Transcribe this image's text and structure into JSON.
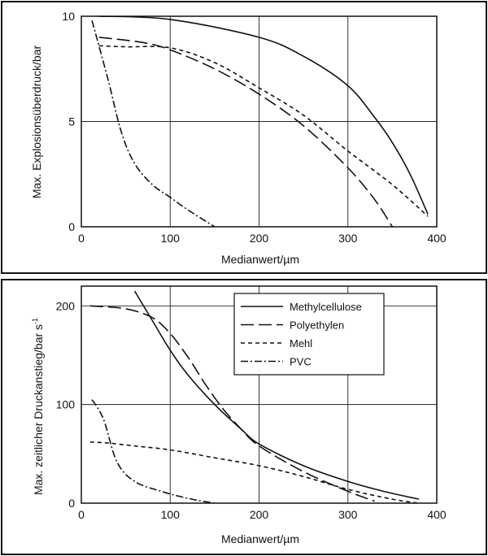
{
  "chart_data": [
    {
      "type": "line",
      "xlabel": "Medianwert/µm",
      "ylabel": "Max. Explosionsüberdruck/bar",
      "xlim": [
        0,
        400
      ],
      "ylim": [
        0,
        10
      ],
      "xticks": [
        0,
        100,
        200,
        300,
        400
      ],
      "yticks": [
        0,
        5,
        10
      ],
      "grid": true,
      "series": [
        {
          "key": "methylcellulose",
          "dash": "solid",
          "x": [
            20,
            100,
            200,
            250,
            300,
            330,
            350,
            370,
            390
          ],
          "y": [
            10,
            9.85,
            9.0,
            8.1,
            6.7,
            5.2,
            4.0,
            2.5,
            0.6
          ]
        },
        {
          "key": "polyethylen",
          "dash": "long-dash",
          "x": [
            20,
            70,
            100,
            150,
            200,
            250,
            300,
            330,
            350
          ],
          "y": [
            9.0,
            8.75,
            8.4,
            7.5,
            6.3,
            4.8,
            2.8,
            1.3,
            0
          ]
        },
        {
          "key": "mehl",
          "dash": "short-dash",
          "x": [
            20,
            50,
            100,
            150,
            200,
            250,
            300,
            350,
            390
          ],
          "y": [
            8.6,
            8.55,
            8.5,
            7.8,
            6.6,
            5.3,
            3.6,
            2.0,
            0.5
          ]
        },
        {
          "key": "pvc",
          "dash": "dash-dot",
          "x": [
            12,
            30,
            45,
            60,
            80,
            100,
            120,
            150
          ],
          "y": [
            9.8,
            7.0,
            4.5,
            3.0,
            2.0,
            1.4,
            0.8,
            0
          ]
        }
      ]
    },
    {
      "type": "line",
      "xlabel": "Medianwert/µm",
      "ylabel": "Max. zeitlicher Druckanstieg/bar s",
      "ylabel_sup": "-1",
      "xlim": [
        0,
        400
      ],
      "ylim": [
        0,
        220
      ],
      "xticks": [
        0,
        100,
        200,
        300,
        400
      ],
      "yticks": [
        0,
        100,
        200
      ],
      "grid": true,
      "legend": {
        "placement": "top-right",
        "entries": [
          {
            "label": "Methylcellulose",
            "dash": "solid"
          },
          {
            "label": "Polyethylen",
            "dash": "long-dash"
          },
          {
            "label": "Mehl",
            "dash": "short-dash"
          },
          {
            "label": "PVC",
            "dash": "dash-dot"
          }
        ]
      },
      "series": [
        {
          "key": "methylcellulose",
          "dash": "solid",
          "x": [
            60,
            80,
            100,
            120,
            150,
            180,
            200,
            250,
            300,
            340,
            380
          ],
          "y": [
            215,
            185,
            155,
            130,
            100,
            75,
            60,
            38,
            22,
            12,
            4
          ]
        },
        {
          "key": "polyethylen",
          "dash": "long-dash",
          "x": [
            10,
            50,
            80,
            100,
            120,
            140,
            160,
            180,
            200,
            250,
            300,
            330
          ],
          "y": [
            200,
            197,
            188,
            172,
            148,
            120,
            95,
            75,
            58,
            32,
            12,
            2
          ]
        },
        {
          "key": "mehl",
          "dash": "short-dash",
          "x": [
            10,
            30,
            60,
            100,
            150,
            200,
            250,
            300,
            350,
            380
          ],
          "y": [
            62,
            61,
            58,
            54,
            46,
            38,
            27,
            14,
            4,
            0
          ]
        },
        {
          "key": "pvc",
          "dash": "dash-dot",
          "x": [
            12,
            25,
            40,
            60,
            90,
            110,
            130,
            150
          ],
          "y": [
            105,
            85,
            42,
            22,
            12,
            7,
            3,
            0
          ]
        }
      ]
    }
  ]
}
